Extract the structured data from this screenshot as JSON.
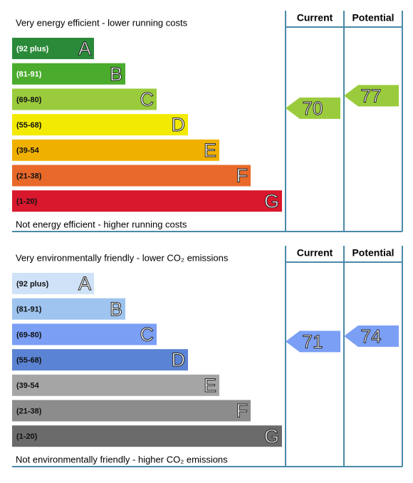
{
  "chart_data": [
    {
      "type": "rating",
      "title": "Very energy efficient - lower running costs",
      "footer": "Not energy efficient - higher running costs",
      "column_labels": [
        "Current",
        "Potential"
      ],
      "letters": [
        "A",
        "B",
        "C",
        "D",
        "E",
        "F",
        "G"
      ],
      "categories": [
        "(92 plus)",
        "(81-91)",
        "(69-80)",
        "(55-68)",
        "(39-54",
        "(21-38)",
        "(1-20)"
      ],
      "mins": [
        92,
        81,
        69,
        55,
        39,
        21,
        1
      ],
      "colors": [
        "#2a8a3a",
        "#4aab2c",
        "#9acb3c",
        "#f2ea00",
        "#f0b000",
        "#e8692a",
        "#d9182e"
      ],
      "text_colors": [
        "#fff",
        "#fff",
        "#111",
        "#111",
        "#111",
        "#111",
        "#111"
      ],
      "current": 70,
      "potential": 77
    },
    {
      "type": "rating",
      "title": "Very environmentally friendly - lower CO₂ emissions",
      "footer": "Not environmentally friendly - higher CO₂ emissions",
      "column_labels": [
        "Current",
        "Potential"
      ],
      "letters": [
        "A",
        "B",
        "C",
        "D",
        "E",
        "F",
        "G"
      ],
      "categories": [
        "(92 plus)",
        "(81-91)",
        "(69-80)",
        "(55-68)",
        "(39-54",
        "(21-38)",
        "(1-20)"
      ],
      "mins": [
        92,
        81,
        69,
        55,
        39,
        21,
        1
      ],
      "colors": [
        "#cfe2f7",
        "#9ec4ef",
        "#7b9ff5",
        "#5b83d4",
        "#a5a5a5",
        "#8c8c8c",
        "#6b6b6b"
      ],
      "text_colors": [
        "#111",
        "#111",
        "#111",
        "#111",
        "#111",
        "#111",
        "#111"
      ],
      "current": 71,
      "potential": 74
    }
  ]
}
